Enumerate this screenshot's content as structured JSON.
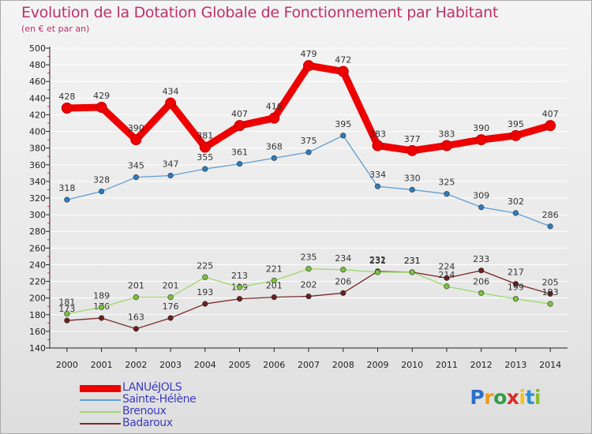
{
  "header": {
    "title": "Evolution de la Dotation Globale de Fonctionnement par Habitant",
    "subtitle": "(en € et par an)"
  },
  "brand": {
    "letters": [
      "P",
      "r",
      "o",
      "x",
      "i",
      "t",
      "i"
    ],
    "colors": [
      "#2b6fc8",
      "#f29a1a",
      "#2f9e46",
      "#d92b2b",
      "#f2c21a",
      "#2b8fd6",
      "#8bbf2f"
    ]
  },
  "colors": {
    "title": "#c0306a",
    "legend_text": "#3b3bc4",
    "axis": "#222222",
    "grid": "#ffffff"
  },
  "chart_data": {
    "type": "line",
    "title": "Evolution de la Dotation Globale de Fonctionnement par Habitant",
    "subtitle": "(en € et par an)",
    "x": [
      "2000",
      "2001",
      "2002",
      "2003",
      "2004",
      "2005",
      "2006",
      "2007",
      "2008",
      "2009",
      "2010",
      "2011",
      "2012",
      "2013",
      "2014"
    ],
    "ylim": [
      140,
      500
    ],
    "yticks": [
      140,
      160,
      180,
      200,
      220,
      240,
      260,
      280,
      300,
      320,
      340,
      360,
      380,
      400,
      420,
      440,
      460,
      480,
      500
    ],
    "grid": true,
    "legend_position": "bottom-left",
    "series": [
      {
        "name": "LANUéJOLS",
        "color": "#ee0000",
        "emphasis": true,
        "values": [
          428,
          429,
          390,
          434,
          381,
          407,
          416,
          479,
          472,
          383,
          377,
          383,
          390,
          395,
          407
        ]
      },
      {
        "name": "Sainte-Hélène",
        "color": "#5f9fd4",
        "marker": "#2e7bbf",
        "values": [
          318,
          328,
          345,
          347,
          355,
          361,
          368,
          375,
          395,
          334,
          330,
          325,
          309,
          302,
          286
        ]
      },
      {
        "name": "Brenoux",
        "color": "#9ed86a",
        "marker": "#79c33d",
        "values": [
          181,
          189,
          201,
          201,
          225,
          213,
          221,
          235,
          234,
          231,
          231,
          214,
          206,
          199,
          193
        ]
      },
      {
        "name": "Badaroux",
        "color": "#7a2a2a",
        "marker": "#6b1e1e",
        "values": [
          173,
          176,
          163,
          176,
          193,
          199,
          201,
          202,
          206,
          232,
          231,
          224,
          233,
          217,
          205
        ]
      }
    ]
  }
}
